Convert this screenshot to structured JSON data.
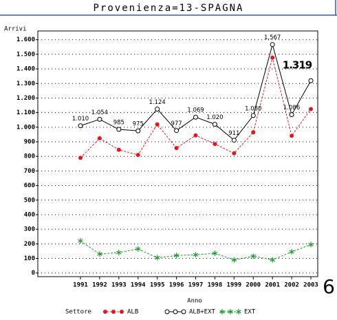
{
  "chart_data": {
    "type": "line",
    "title": "Provenienza=13-SPAGNA",
    "y_label": "Arrivi",
    "x_label": "Anno",
    "legend_title": "Settore",
    "page_number": "6",
    "categories": [
      "1991",
      "1992",
      "1993",
      "1994",
      "1995",
      "1996",
      "1997",
      "1998",
      "1999",
      "2000",
      "2001",
      "2002",
      "2003"
    ],
    "series": [
      {
        "name": "ALB",
        "color": "#e8141b",
        "marker": "dot",
        "values": [
          790,
          924,
          845,
          810,
          1019,
          857,
          944,
          885,
          821,
          965,
          1477,
          941,
          1124
        ]
      },
      {
        "name": "ALB+EXT",
        "color": "#000000",
        "marker": "circle",
        "values": [
          1010,
          1054,
          985,
          975,
          1124,
          977,
          1069,
          1020,
          911,
          1080,
          1567,
          1086,
          1319
        ],
        "value_labels": [
          "1.010",
          "1.054",
          "985",
          "975",
          "1.124",
          "977",
          "1.069",
          "1.020",
          "911",
          "1.080",
          "1.567",
          "1.086",
          "1.319"
        ]
      },
      {
        "name": "EXT",
        "color": "#1a9a2a",
        "marker": "star",
        "values": [
          220,
          130,
          140,
          165,
          105,
          120,
          125,
          135,
          90,
          115,
          90,
          145,
          195
        ]
      }
    ],
    "ylim": [
      -25,
      1660
    ],
    "yticks": [
      0,
      100,
      200,
      300,
      400,
      500,
      600,
      700,
      800,
      900,
      {
        "value": 1000,
        "label": "1.000"
      },
      {
        "value": 1100,
        "label": "1.100"
      },
      {
        "value": 1200,
        "label": "1.200"
      },
      {
        "value": 1300,
        "label": "1.300"
      },
      {
        "value": 1400,
        "label": "1.400"
      },
      {
        "value": 1500,
        "label": "1.500"
      },
      {
        "value": 1600,
        "label": "1.600"
      }
    ],
    "grid": true
  }
}
